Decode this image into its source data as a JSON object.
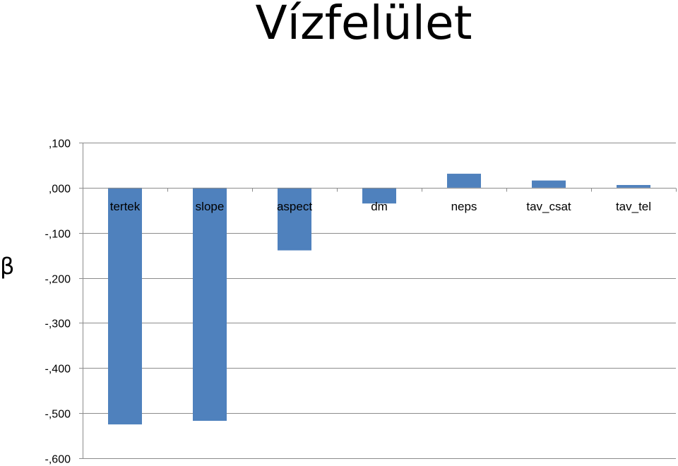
{
  "page": {
    "title": "Vízfelület",
    "side_label": "β"
  },
  "chart_data": {
    "type": "bar",
    "title": "Vízfelület",
    "ylabel": "β",
    "xlabel": "",
    "categories": [
      "tertek",
      "slope",
      "aspect",
      "dm",
      "neps",
      "tav_csat",
      "tav_tel"
    ],
    "values": [
      -0.525,
      -0.517,
      -0.139,
      -0.035,
      0.031,
      0.016,
      0.006
    ],
    "ylim": [
      -0.6,
      0.1
    ],
    "yticks": [
      0.1,
      0.0,
      -0.1,
      -0.2,
      -0.3,
      -0.4,
      -0.5,
      -0.6
    ],
    "ytick_labels": [
      ",100",
      ",000",
      "-,100",
      "-,200",
      "-,300",
      "-,400",
      "-,500",
      "-,600"
    ],
    "grid": true,
    "legend": "none",
    "bar_color": "#4F81BD",
    "grid_color": "#8C8C8C"
  }
}
